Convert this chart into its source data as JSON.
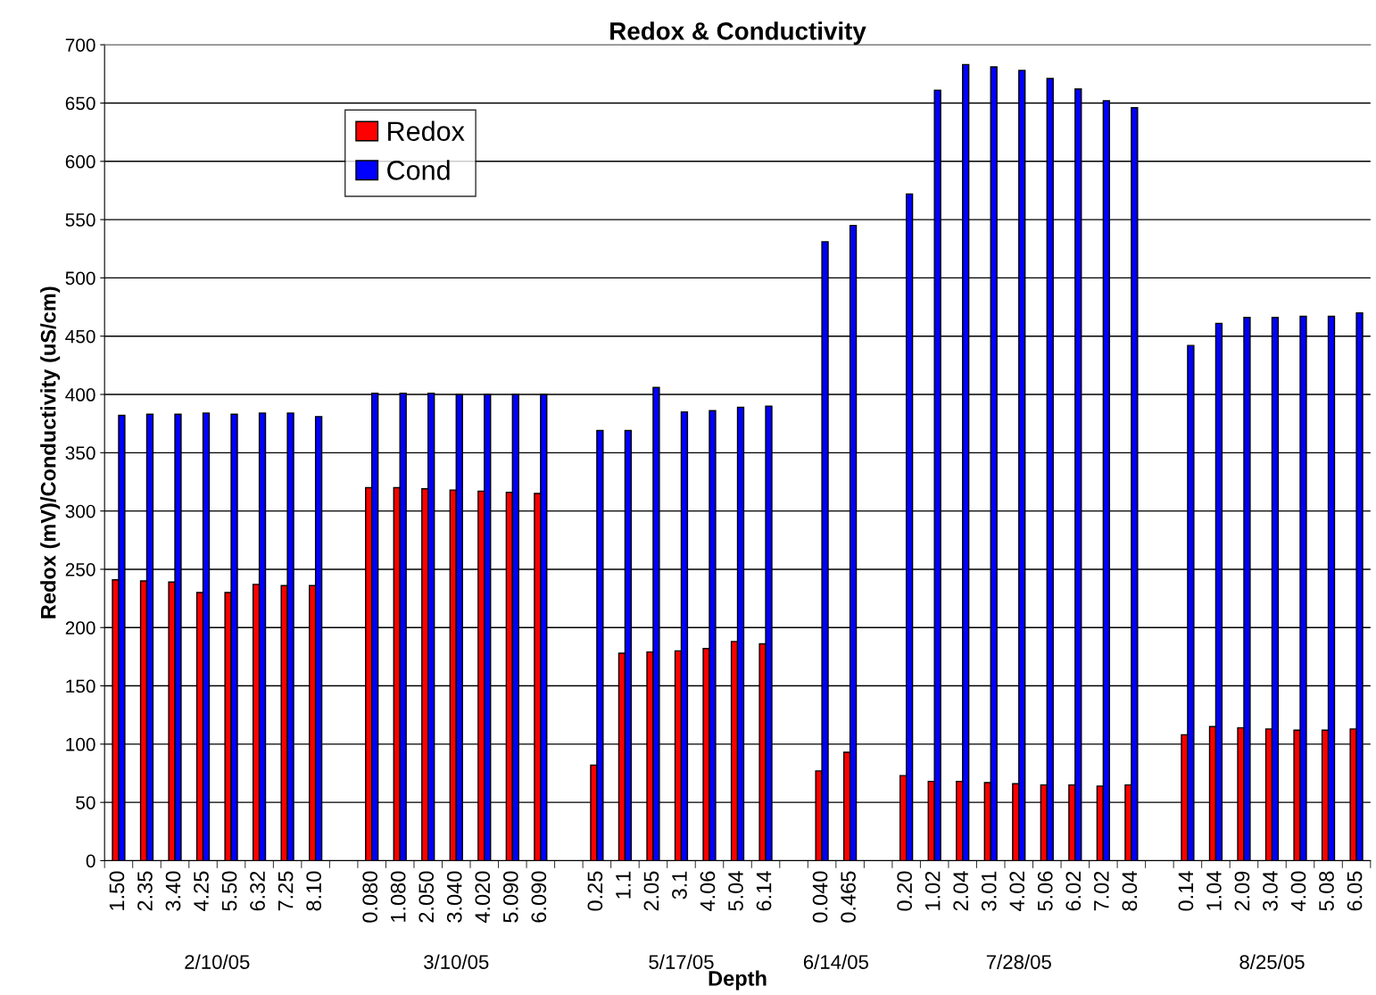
{
  "chart_data": {
    "type": "bar",
    "title": "Redox & Conductivity",
    "xlabel": "Depth",
    "ylabel": "Redox (mV)/Conductivity (uS/cm)",
    "categories": [
      "1.50",
      "2.35",
      "3.40",
      "4.25",
      "5.50",
      "6.32",
      "7.25",
      "8.10",
      null,
      "0.080",
      "1.080",
      "2.050",
      "3.040",
      "4.020",
      "5.090",
      "6.090",
      null,
      "0.25",
      "1.1",
      "2.05",
      "3.1",
      "4.06",
      "5.04",
      "6.14",
      null,
      "0.040",
      "0.465",
      null,
      "0.20",
      "1.02",
      "2.04",
      "3.01",
      "4.02",
      "5.06",
      "6.02",
      "7.02",
      "8.04",
      null,
      "0.14",
      "1.04",
      "2.09",
      "3.04",
      "4.00",
      "5.08",
      "6.05"
    ],
    "series": [
      {
        "name": "Redox",
        "color": "#ff0000",
        "values": [
          241,
          240,
          239,
          230,
          230,
          237,
          236,
          236,
          null,
          320,
          320,
          319,
          318,
          317,
          316,
          315,
          null,
          82,
          178,
          179,
          180,
          182,
          188,
          186,
          null,
          77,
          93,
          null,
          73,
          68,
          68,
          67,
          66,
          65,
          65,
          64,
          65,
          null,
          108,
          115,
          114,
          113,
          112,
          112,
          113
        ]
      },
      {
        "name": "Cond",
        "color": "#0000ff",
        "values": [
          382,
          383,
          383,
          384,
          383,
          384,
          384,
          381,
          null,
          401,
          401,
          401,
          400,
          400,
          400,
          400,
          null,
          369,
          369,
          406,
          385,
          386,
          389,
          390,
          null,
          531,
          545,
          null,
          572,
          661,
          683,
          681,
          678,
          671,
          662,
          652,
          646,
          null,
          442,
          461,
          466,
          466,
          467,
          467,
          470
        ]
      }
    ],
    "annotations": [
      "2/10/05",
      "3/10/05",
      "5/17/05",
      "6/14/05",
      "7/28/05",
      "8/25/05"
    ],
    "ylim": [
      0,
      700
    ],
    "yticks": [
      0,
      50,
      100,
      150,
      200,
      250,
      300,
      350,
      400,
      450,
      500,
      550,
      600,
      650,
      700
    ],
    "grid": "y",
    "legend": "top left"
  }
}
